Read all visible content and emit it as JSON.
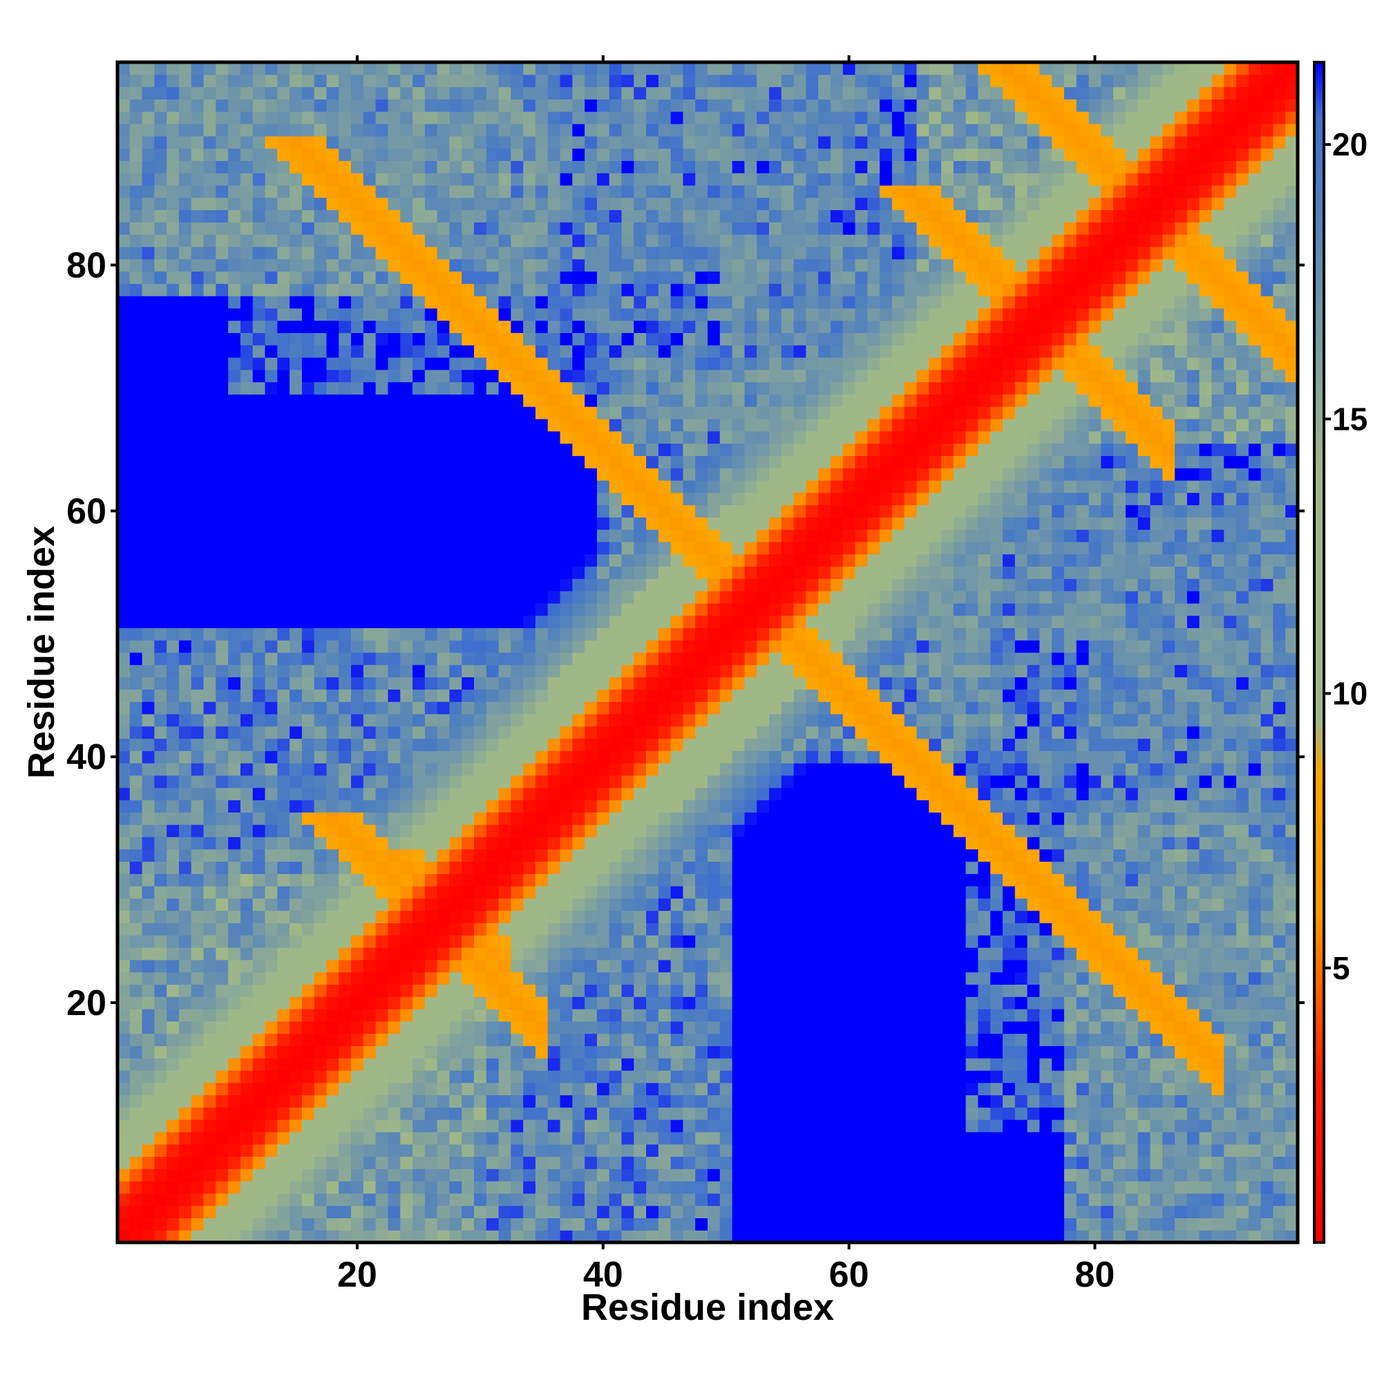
{
  "chart_data": {
    "type": "heatmap",
    "title": "",
    "xlabel": "Residue index",
    "ylabel": "Residue index",
    "n_residues": 96,
    "xlim": [
      0.5,
      96.5
    ],
    "ylim": [
      0.5,
      96.5
    ],
    "x_ticks": [
      20,
      40,
      60,
      80
    ],
    "y_ticks": [
      20,
      40,
      60,
      80
    ],
    "x_tick_labels": [
      "20",
      "40",
      "60",
      "80"
    ],
    "y_tick_labels": [
      "20",
      "40",
      "60",
      "80"
    ],
    "grid": false,
    "value_description": "pairwise residue distance",
    "colorbar": {
      "range": [
        0,
        21.5
      ],
      "ticks": [
        5,
        10,
        15,
        20
      ],
      "tick_labels": [
        "5",
        "10",
        "15",
        "20"
      ],
      "stops": [
        {
          "value": 0,
          "color": "#ff0000"
        },
        {
          "value": 3,
          "color": "#ff2000"
        },
        {
          "value": 6,
          "color": "#ff9900"
        },
        {
          "value": 8.5,
          "color": "#ffa500"
        },
        {
          "value": 9.5,
          "color": "#a0b888"
        },
        {
          "value": 14,
          "color": "#a0b888"
        },
        {
          "value": 19,
          "color": "#4f7fbf"
        },
        {
          "value": 20.5,
          "color": "#3f6fcf"
        },
        {
          "value": 21.5,
          "color": "#0000ff"
        }
      ]
    },
    "cutoff_value": 21.5,
    "structure_elements": [
      {
        "from": 1,
        "to": 96,
        "type": "diagonal",
        "min_distance": 0
      },
      {
        "a": [
          17,
          20
        ],
        "b": [
          84,
          88
        ],
        "type": "antiparallel_contact",
        "min_distance": 6
      },
      {
        "a": [
          20,
          33
        ],
        "b": [
          20,
          33
        ],
        "type": "cross_contact",
        "min_distance": 6.5
      },
      {
        "a": [
          67,
          76
        ],
        "b": [
          72,
          84
        ],
        "type": "antiparallel_contact",
        "min_distance": 6
      },
      {
        "a": [
          75,
          92
        ],
        "b": [
          78,
          94
        ],
        "type": "antiparallel_contact",
        "min_distance": 6
      },
      {
        "a": [
          37,
          50
        ],
        "b": [
          37,
          50
        ],
        "type": "helix_band",
        "min_distance": 7
      }
    ]
  }
}
